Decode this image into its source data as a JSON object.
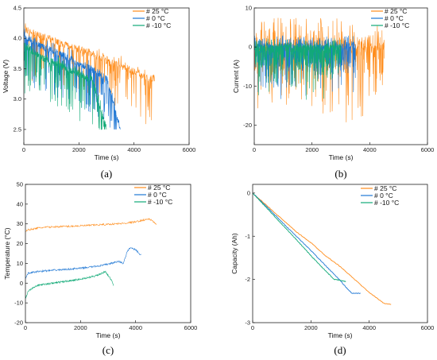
{
  "colors": {
    "s25": "#ff8c1a",
    "s0": "#1f77d4",
    "s10": "#11aa77"
  },
  "chart_data": [
    {
      "id": "a",
      "type": "line",
      "caption": "(a)",
      "xlabel": "Time (s)",
      "ylabel": "Voltage (V)",
      "xlim": [
        0,
        6000
      ],
      "ylim": [
        2.25,
        4.5
      ],
      "xticks": [
        0,
        2000,
        4000,
        6000
      ],
      "yticks": [
        2.5,
        3.0,
        3.5,
        4.0,
        4.5
      ],
      "ytick_labels": [
        "2.5",
        "3.0",
        "3.5",
        "4.0",
        "4.5"
      ],
      "legend": "top-right",
      "series": [
        {
          "name": "#  25 °C",
          "color": "#ff8c1a",
          "pattern": "voltage",
          "x": [
            0,
            500,
            1000,
            1500,
            2000,
            2500,
            3000,
            3500,
            4000,
            4500,
            4750
          ],
          "y": [
            4.15,
            4.05,
            3.98,
            3.9,
            3.82,
            3.74,
            3.65,
            3.56,
            3.45,
            3.33,
            3.34
          ]
        },
        {
          "name": "#  0 °C",
          "color": "#1f77d4",
          "pattern": "voltage",
          "x": [
            0,
            500,
            1000,
            1500,
            2000,
            2500,
            3000,
            3500
          ],
          "y": [
            4.05,
            3.9,
            3.8,
            3.7,
            3.6,
            3.48,
            3.35,
            2.5
          ]
        },
        {
          "name": "#  -10 °C",
          "color": "#11aa77",
          "pattern": "voltage",
          "x": [
            0,
            500,
            1000,
            1500,
            2000,
            2500,
            3000
          ],
          "y": [
            3.9,
            3.72,
            3.62,
            3.52,
            3.42,
            3.3,
            2.5
          ]
        }
      ]
    },
    {
      "id": "b",
      "type": "line",
      "caption": "(b)",
      "xlabel": "Time (s)",
      "ylabel": "Current (A)",
      "xlim": [
        0,
        6000
      ],
      "ylim": [
        -25,
        10
      ],
      "xticks": [
        0,
        2000,
        4000,
        6000
      ],
      "yticks": [
        -20,
        -10,
        0,
        10
      ],
      "ytick_labels": [
        "-20",
        "-10",
        "0",
        "10"
      ],
      "legend": "top-right",
      "series": [
        {
          "name": "#  25 °C",
          "color": "#ff8c1a",
          "pattern": "current",
          "x": [
            0,
            4500
          ],
          "y": [
            0,
            0
          ],
          "range": [
            -21,
            7.5
          ]
        },
        {
          "name": "#  0 °C",
          "color": "#1f77d4",
          "pattern": "current",
          "x": [
            0,
            3500
          ],
          "y": [
            0,
            0
          ],
          "range": [
            -15,
            3
          ]
        },
        {
          "name": "#  -10 °C",
          "color": "#11aa77",
          "pattern": "current",
          "x": [
            0,
            3000
          ],
          "y": [
            0,
            0
          ],
          "range": [
            -15,
            0.5
          ]
        }
      ]
    },
    {
      "id": "c",
      "type": "line",
      "caption": "(c)",
      "xlabel": "Time (s)",
      "ylabel": "Temperature (°C)",
      "xlim": [
        0,
        6000
      ],
      "ylim": [
        -20,
        50
      ],
      "xticks": [
        0,
        2000,
        4000,
        6000
      ],
      "yticks": [
        -20,
        -10,
        0,
        10,
        20,
        30,
        40,
        50
      ],
      "ytick_labels": [
        "-20",
        "-10",
        "0",
        "10",
        "20",
        "30",
        "40",
        "50"
      ],
      "legend": "top-right",
      "series": [
        {
          "name": "#  25 °C",
          "color": "#ff8c1a",
          "pattern": "temp",
          "x": [
            0,
            100,
            500,
            1000,
            2000,
            3000,
            3500,
            4000,
            4300,
            4500,
            4750
          ],
          "y": [
            26,
            27,
            28,
            28.5,
            29,
            29.8,
            30.2,
            31,
            32,
            32.5,
            30
          ]
        },
        {
          "name": "#  0 °C",
          "color": "#1f77d4",
          "pattern": "temp",
          "x": [
            0,
            100,
            500,
            1000,
            2000,
            2800,
            3400,
            3550,
            3700,
            3800,
            4000,
            4200
          ],
          "y": [
            2,
            5,
            6,
            6.5,
            7.5,
            9,
            11,
            10,
            16,
            18,
            17,
            14
          ]
        },
        {
          "name": "#  -10 °C",
          "color": "#11aa77",
          "pattern": "temp",
          "x": [
            0,
            100,
            300,
            500,
            1000,
            1500,
            2000,
            2500,
            2800,
            2900,
            3000,
            3100,
            3200
          ],
          "y": [
            -8,
            -4,
            -2,
            -1,
            0,
            1,
            2,
            3.5,
            5,
            6,
            4,
            2,
            -1
          ]
        }
      ]
    },
    {
      "id": "d",
      "type": "line",
      "caption": "(d)",
      "xlabel": "Time (s)",
      "ylabel": "Capacity (Ah)",
      "xlim": [
        0,
        6000
      ],
      "ylim": [
        -3,
        0.2
      ],
      "xticks": [
        0,
        2000,
        4000,
        6000
      ],
      "yticks": [
        -3,
        -2,
        -1,
        0
      ],
      "ytick_labels": [
        "-3",
        "-2",
        "-1",
        "0"
      ],
      "legend": "top-right",
      "series": [
        {
          "name": "#  25 °C",
          "color": "#ff8c1a",
          "pattern": "capacity",
          "x": [
            0,
            500,
            1000,
            1500,
            2000,
            2500,
            3000,
            3500,
            4000,
            4500,
            4750
          ],
          "y": [
            0,
            -0.3,
            -0.6,
            -0.9,
            -1.15,
            -1.45,
            -1.7,
            -2.0,
            -2.3,
            -2.55,
            -2.58
          ]
        },
        {
          "name": "#  0 °C",
          "color": "#1f77d4",
          "pattern": "capacity",
          "x": [
            0,
            500,
            1000,
            1500,
            2000,
            2500,
            3000,
            3200,
            3400,
            3700
          ],
          "y": [
            0,
            -0.33,
            -0.67,
            -1.0,
            -1.33,
            -1.68,
            -2.02,
            -2.18,
            -2.32,
            -2.32
          ]
        },
        {
          "name": "#  -10 °C",
          "color": "#11aa77",
          "pattern": "capacity",
          "x": [
            0,
            500,
            1000,
            1500,
            2000,
            2500,
            2800,
            3000,
            3200
          ],
          "y": [
            0,
            -0.36,
            -0.72,
            -1.08,
            -1.45,
            -1.8,
            -2.0,
            -2.02,
            -2.05
          ]
        }
      ]
    }
  ]
}
